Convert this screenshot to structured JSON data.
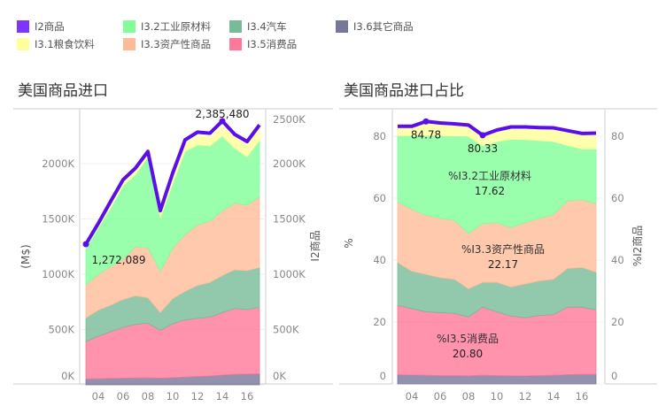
{
  "legend": [
    {
      "label": "I2商品",
      "color": "#7b35ff"
    },
    {
      "label": "I3.1粮食饮料",
      "color": "#ffff99"
    },
    {
      "label": "I3.2工业原材料",
      "color": "#80ff99"
    },
    {
      "label": "I3.3资产性商品",
      "color": "#ffbb99"
    },
    {
      "label": "I3.4汽车",
      "color": "#77bb99"
    },
    {
      "label": "I3.5消费品",
      "color": "#ff7799"
    },
    {
      "label": "I3.6其它商品",
      "color": "#777799"
    }
  ],
  "chart_data": [
    {
      "type": "area",
      "title": "美国商品进口",
      "ylabel": "(M$)",
      "y2label": "I2商品",
      "ylim": [
        0,
        2500
      ],
      "x": [
        2003,
        2004,
        2005,
        2006,
        2007,
        2008,
        2009,
        2010,
        2011,
        2012,
        2013,
        2014,
        2015,
        2016,
        2017
      ],
      "xticks": [
        "04",
        "06",
        "08",
        "10",
        "12",
        "14",
        "16"
      ],
      "yticks": [
        "0K",
        "500K",
        "1000K",
        "1500K",
        "2000K"
      ],
      "y2ticks": [
        "0K",
        "500K",
        "1000K",
        "1500K",
        "2000K",
        "2500K"
      ],
      "stack": [
        {
          "name": "I3.6其它商品",
          "color": "#777799",
          "values": [
            53,
            55,
            58,
            60,
            62,
            64,
            60,
            65,
            70,
            75,
            80,
            88,
            95,
            98,
            100
          ]
        },
        {
          "name": "I3.5消费品",
          "color": "#ff7799",
          "values": [
            339,
            385,
            422,
            460,
            485,
            493,
            433,
            487,
            517,
            525,
            533,
            565,
            595,
            582,
            601
          ]
        },
        {
          "name": "I3.4汽车",
          "color": "#77bb99",
          "values": [
            213,
            235,
            240,
            251,
            258,
            230,
            160,
            227,
            258,
            299,
            312,
            334,
            350,
            352,
            360
          ]
        },
        {
          "name": "I3.3资产性商品",
          "color": "#ffbb99",
          "values": [
            299,
            325,
            349,
            368,
            443,
            453,
            374,
            456,
            515,
            549,
            555,
            586,
            605,
            592,
            640
          ]
        },
        {
          "name": "I3.2工业原材料",
          "color": "#80ff99",
          "values": [
            331,
            420,
            531,
            661,
            652,
            820,
            483,
            585,
            750,
            722,
            680,
            677,
            495,
            436,
            509
          ]
        },
        {
          "name": "I3.1粮食饮料",
          "color": "#ffff99",
          "values": [
            25,
            30,
            40,
            30,
            40,
            40,
            40,
            60,
            70,
            80,
            80,
            80,
            100,
            100,
            120
          ]
        }
      ],
      "line": {
        "name": "I2商品",
        "color": "#5a0fe8",
        "values": [
          1272.089,
          1460,
          1660,
          1855,
          1960,
          2110,
          1575,
          1915,
          2215,
          2285,
          2275,
          2385.48,
          2265,
          2200,
          2350
        ]
      },
      "annotations": [
        {
          "text": "1,272,089",
          "x": 2003
        },
        {
          "text": "2,385,480",
          "x": 2014
        }
      ]
    },
    {
      "type": "area",
      "title": "美国商品进口占比",
      "ylabel": "%",
      "y2label": "%I2商品",
      "ylim": [
        0,
        88
      ],
      "x": [
        2003,
        2004,
        2005,
        2006,
        2007,
        2008,
        2009,
        2010,
        2011,
        2012,
        2013,
        2014,
        2015,
        2016,
        2017
      ],
      "xticks": [
        "04",
        "06",
        "08",
        "10",
        "12",
        "14",
        "16"
      ],
      "yticks": [
        "0",
        "20",
        "40",
        "60",
        "80"
      ],
      "y2ticks": [
        "0",
        "20",
        "40",
        "60",
        "80"
      ],
      "stack": [
        {
          "name": "%I3.6其它商品",
          "color": "#777799",
          "values": [
            3,
            2.9,
            2.8,
            2.7,
            2.7,
            2.6,
            2.8,
            2.7,
            2.6,
            2.6,
            2.7,
            2.8,
            3,
            3.1,
            3.1
          ]
        },
        {
          "name": "%I3.5消费品",
          "color": "#ff7799",
          "values": [
            22.4,
            21.4,
            20.5,
            20.3,
            20.1,
            19,
            22,
            20.6,
            19.3,
            18.8,
            19.4,
            19.6,
            21.8,
            21.7,
            20.8
          ]
        },
        {
          "name": "%I3.4汽车",
          "color": "#77bb99",
          "values": [
            13.8,
            12.1,
            12.1,
            11.3,
            11,
            9.1,
            8,
            9.5,
            9.4,
            10.9,
            11.2,
            11.4,
            12.5,
            12.8,
            12.2
          ]
        },
        {
          "name": "%I3.3资产性商品",
          "color": "#ffbb99",
          "values": [
            19.6,
            20,
            19.1,
            19.2,
            19.1,
            17.9,
            19,
            19.3,
            19.2,
            19.8,
            20.2,
            20.9,
            21.9,
            21.9,
            22.17
          ]
        },
        {
          "name": "%I3.2工业原材料",
          "color": "#80ff99",
          "values": [
            21.4,
            23.8,
            25.8,
            26.7,
            27.2,
            31.4,
            25.1,
            26.2,
            28.5,
            26.8,
            25.1,
            23.6,
            17.8,
            16.4,
            17.62
          ]
        },
        {
          "name": "%I3.1粮食饮料",
          "color": "#ffff99",
          "values": [
            2.2,
            2.2,
            3.7,
            3.3,
            3.1,
            2.8,
            2.6,
            2.9,
            3.2,
            3.3,
            3.4,
            3.6,
            4,
            4.2,
            4
          ]
        }
      ],
      "line": {
        "name": "%I2商品",
        "color": "#5a0fe8",
        "values": [
          83.2,
          83.2,
          84.78,
          84.3,
          84,
          83.6,
          80.33,
          82,
          83,
          83,
          82.8,
          82.7,
          81.8,
          80.9,
          81
        ]
      },
      "annotations": [
        {
          "text": "84.78",
          "x": 2005
        },
        {
          "text": "80.33",
          "x": 2009
        }
      ],
      "area_labels": [
        {
          "name": "%I3.2工业原材料",
          "value": "17.62"
        },
        {
          "name": "%I3.3资产性商品",
          "value": "22.17"
        },
        {
          "name": "%I3.5消费品",
          "value": "20.80"
        }
      ]
    }
  ]
}
